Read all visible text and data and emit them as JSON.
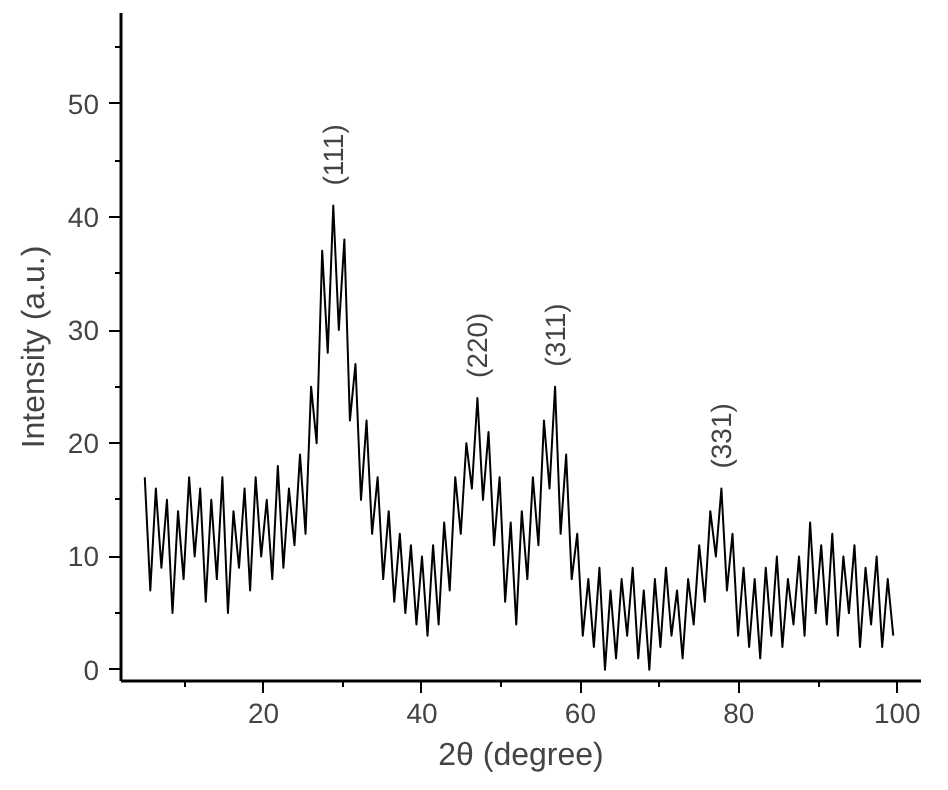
{
  "chart_data": {
    "type": "line",
    "xlabel": "2θ (degree)",
    "ylabel": "Intensity (a.u.)",
    "xlim": [
      2,
      103
    ],
    "ylim": [
      -1,
      58
    ],
    "xticks": [
      20,
      40,
      60,
      80,
      100
    ],
    "yticks": [
      0,
      10,
      20,
      30,
      40,
      50
    ],
    "grid": false,
    "x": [
      5.0,
      5.7,
      6.4,
      7.1,
      7.8,
      8.5,
      9.2,
      9.9,
      10.6,
      11.3,
      12.0,
      12.7,
      13.4,
      14.1,
      14.8,
      15.5,
      16.2,
      16.9,
      17.6,
      18.3,
      19.0,
      19.7,
      20.4,
      21.1,
      21.8,
      22.5,
      23.2,
      23.9,
      24.6,
      25.3,
      26.0,
      26.7,
      27.4,
      28.1,
      28.8,
      29.5,
      30.2,
      30.9,
      31.6,
      32.3,
      33.0,
      33.7,
      34.4,
      35.1,
      35.8,
      36.5,
      37.2,
      37.9,
      38.6,
      39.3,
      40.0,
      40.7,
      41.4,
      42.1,
      42.8,
      43.5,
      44.2,
      44.9,
      45.6,
      46.3,
      47.0,
      47.7,
      48.4,
      49.1,
      49.8,
      50.5,
      51.2,
      51.9,
      52.6,
      53.3,
      54.0,
      54.7,
      55.4,
      56.1,
      56.8,
      57.5,
      58.2,
      58.9,
      59.6,
      60.3,
      61.0,
      61.7,
      62.4,
      63.1,
      63.8,
      64.5,
      65.2,
      65.9,
      66.6,
      67.3,
      68.0,
      68.7,
      69.4,
      70.1,
      70.8,
      71.5,
      72.2,
      72.9,
      73.6,
      74.3,
      75.0,
      75.7,
      76.4,
      77.1,
      77.8,
      78.5,
      79.2,
      79.9,
      80.6,
      81.3,
      82.0,
      82.7,
      83.4,
      84.1,
      84.8,
      85.5,
      86.2,
      86.9,
      87.6,
      88.3,
      89.0,
      89.7,
      90.4,
      91.1,
      91.8,
      92.5,
      93.2,
      93.9,
      94.6,
      95.3,
      96.0,
      96.7,
      97.4,
      98.1,
      98.8,
      99.5
    ],
    "series": [
      {
        "color": "#000000",
        "values": [
          17,
          7,
          16,
          9,
          15,
          5,
          14,
          8,
          17,
          10,
          16,
          6,
          15,
          8,
          17,
          5,
          14,
          9,
          16,
          7,
          17,
          10,
          15,
          8,
          18,
          9,
          16,
          11,
          19,
          12,
          25,
          20,
          37,
          28,
          41,
          30,
          38,
          22,
          27,
          15,
          22,
          12,
          17,
          8,
          14,
          6,
          12,
          5,
          11,
          4,
          10,
          3,
          11,
          4,
          13,
          7,
          17,
          12,
          20,
          16,
          24,
          15,
          21,
          11,
          17,
          6,
          13,
          4,
          14,
          8,
          17,
          11,
          22,
          16,
          25,
          12,
          19,
          8,
          12,
          3,
          8,
          2,
          9,
          0,
          7,
          1,
          8,
          3,
          9,
          1,
          7,
          0,
          8,
          2,
          9,
          3,
          7,
          1,
          8,
          4,
          11,
          6,
          14,
          10,
          16,
          7,
          12,
          3,
          9,
          2,
          8,
          1,
          9,
          3,
          10,
          2,
          8,
          4,
          10,
          3,
          13,
          5,
          11,
          4,
          12,
          3,
          10,
          5,
          11,
          2,
          9,
          4,
          10,
          2,
          8,
          3
        ]
      }
    ],
    "annotations": [
      {
        "text": "(111)",
        "x": 28.8,
        "y": 41
      },
      {
        "text": "(220)",
        "x": 47.0,
        "y": 24
      },
      {
        "text": "(311)",
        "x": 56.8,
        "y": 25
      },
      {
        "text": "(331)",
        "x": 77.8,
        "y": 16
      }
    ]
  }
}
